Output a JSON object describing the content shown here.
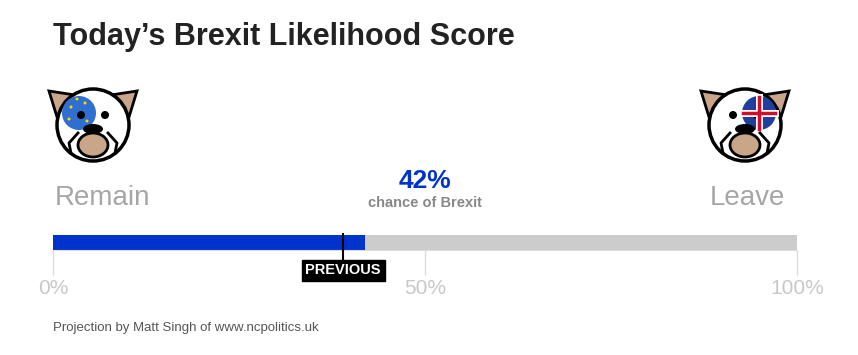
{
  "chart_data": {
    "type": "bar",
    "orientation": "horizontal",
    "title": "Today’s Brexit Likelihood Score",
    "left_label": "Remain",
    "right_label": "Leave",
    "value_caption": "chance of Brexit",
    "categories": [
      null
    ],
    "values": [
      42
    ],
    "value_labels": [
      "42%"
    ],
    "data_labels": true,
    "color": "#0033cc",
    "previous": {
      "label": "PREVIOUS",
      "value": 39
    },
    "xlim": [
      0,
      100
    ],
    "xticks": [
      {
        "value": 0,
        "label": "0%"
      },
      {
        "value": 50,
        "label": "50%"
      },
      {
        "value": 100,
        "label": "100%"
      }
    ],
    "tick_labels": "x",
    "grid": false,
    "source": "Projection by Matt Singh of www.ncpolitics.uk"
  }
}
